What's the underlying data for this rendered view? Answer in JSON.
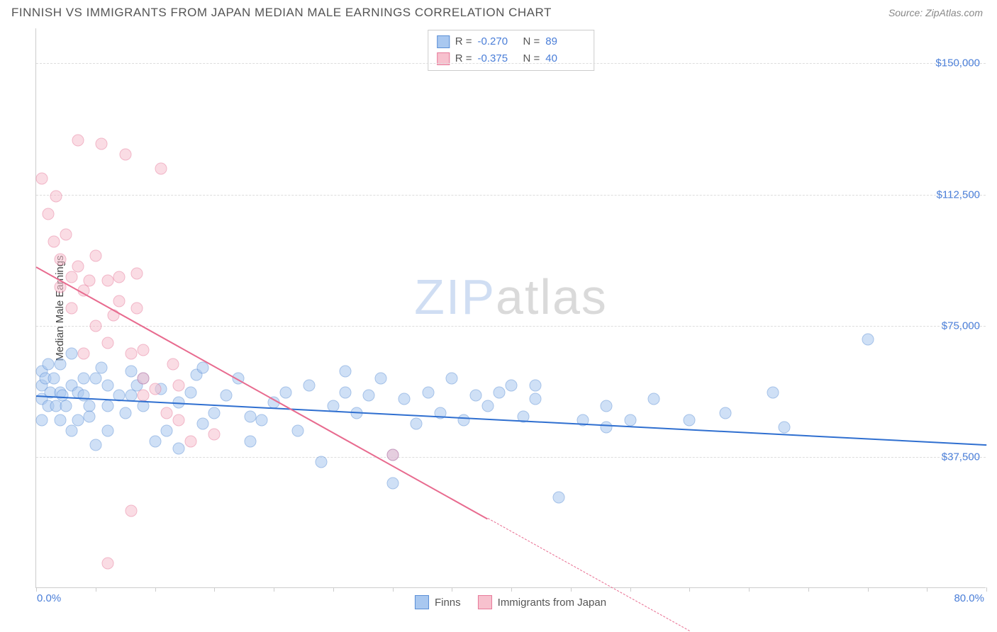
{
  "title": "FINNISH VS IMMIGRANTS FROM JAPAN MEDIAN MALE EARNINGS CORRELATION CHART",
  "source_label": "Source: ZipAtlas.com",
  "ylabel": "Median Male Earnings",
  "watermark": {
    "part1": "ZIP",
    "part2": "atlas"
  },
  "chart": {
    "type": "scatter",
    "xlim": [
      0,
      80
    ],
    "ylim": [
      0,
      160000
    ],
    "xticks_minor": [
      0,
      5,
      10,
      15,
      20,
      25,
      30,
      35,
      40,
      45,
      50,
      55,
      60,
      65,
      70,
      75,
      80
    ],
    "xtick_labels": {
      "min": "0.0%",
      "max": "80.0%"
    },
    "yticks": [
      37500,
      75000,
      112500,
      150000
    ],
    "ytick_labels": [
      "$37,500",
      "$75,000",
      "$112,500",
      "$150,000"
    ],
    "background_color": "#ffffff",
    "grid_color": "#dddddd",
    "axis_color": "#cccccc",
    "tick_label_color": "#4a7ed8",
    "series": [
      {
        "name": "Finns",
        "color_fill": "#a9c8f0",
        "color_stroke": "#5b8fd6",
        "R": "-0.270",
        "N": "89",
        "regression": {
          "x1": 0,
          "y1": 55000,
          "x2": 80,
          "y2": 41000,
          "color": "#2f6fd0",
          "extrapolate_from": 80
        },
        "points": [
          [
            0.5,
            62000
          ],
          [
            0.5,
            54000
          ],
          [
            0.5,
            48000
          ],
          [
            0.5,
            58000
          ],
          [
            0.8,
            60000
          ],
          [
            1,
            52000
          ],
          [
            1,
            64000
          ],
          [
            1.2,
            56000
          ],
          [
            1.5,
            60000
          ],
          [
            1.7,
            52000
          ],
          [
            2,
            56000
          ],
          [
            2,
            64000
          ],
          [
            2,
            48000
          ],
          [
            2.2,
            55000
          ],
          [
            2.5,
            52000
          ],
          [
            3,
            58000
          ],
          [
            3,
            45000
          ],
          [
            3,
            67000
          ],
          [
            3.5,
            56000
          ],
          [
            3.5,
            48000
          ],
          [
            4,
            60000
          ],
          [
            4,
            55000
          ],
          [
            4.5,
            52000
          ],
          [
            4.5,
            49000
          ],
          [
            5,
            60000
          ],
          [
            5,
            41000
          ],
          [
            5.5,
            63000
          ],
          [
            6,
            45000
          ],
          [
            6,
            52000
          ],
          [
            6,
            58000
          ],
          [
            7,
            55000
          ],
          [
            7.5,
            50000
          ],
          [
            8,
            55000
          ],
          [
            8,
            62000
          ],
          [
            8.5,
            58000
          ],
          [
            9,
            52000
          ],
          [
            9,
            60000
          ],
          [
            10,
            42000
          ],
          [
            10.5,
            57000
          ],
          [
            11,
            45000
          ],
          [
            12,
            53000
          ],
          [
            12,
            40000
          ],
          [
            13,
            56000
          ],
          [
            13.5,
            61000
          ],
          [
            14,
            47000
          ],
          [
            15,
            50000
          ],
          [
            16,
            55000
          ],
          [
            17,
            60000
          ],
          [
            18,
            49000
          ],
          [
            18,
            42000
          ],
          [
            19,
            48000
          ],
          [
            20,
            53000
          ],
          [
            21,
            56000
          ],
          [
            22,
            45000
          ],
          [
            23,
            58000
          ],
          [
            24,
            36000
          ],
          [
            25,
            52000
          ],
          [
            26,
            62000
          ],
          [
            26,
            56000
          ],
          [
            27,
            50000
          ],
          [
            28,
            55000
          ],
          [
            29,
            60000
          ],
          [
            30,
            30000
          ],
          [
            30,
            38000
          ],
          [
            31,
            54000
          ],
          [
            32,
            47000
          ],
          [
            33,
            56000
          ],
          [
            34,
            50000
          ],
          [
            35,
            60000
          ],
          [
            36,
            48000
          ],
          [
            37,
            55000
          ],
          [
            38,
            52000
          ],
          [
            39,
            56000
          ],
          [
            40,
            58000
          ],
          [
            41,
            49000
          ],
          [
            42,
            54000
          ],
          [
            42,
            58000
          ],
          [
            44,
            26000
          ],
          [
            46,
            48000
          ],
          [
            48,
            52000
          ],
          [
            48,
            46000
          ],
          [
            50,
            48000
          ],
          [
            52,
            54000
          ],
          [
            55,
            48000
          ],
          [
            58,
            50000
          ],
          [
            62,
            56000
          ],
          [
            63,
            46000
          ],
          [
            70,
            71000
          ],
          [
            14,
            63000
          ]
        ]
      },
      {
        "name": "Immigrants from Japan",
        "color_fill": "#f7c1ce",
        "color_stroke": "#e77a9a",
        "R": "-0.375",
        "N": "40",
        "regression": {
          "x1": 0,
          "y1": 92000,
          "x2": 38,
          "y2": 20000,
          "color": "#e86b8f",
          "extrapolate_from": 38,
          "extrapolate_to_x": 55
        },
        "points": [
          [
            0.5,
            117000
          ],
          [
            1,
            107000
          ],
          [
            1.5,
            99000
          ],
          [
            1.7,
            112000
          ],
          [
            2,
            94000
          ],
          [
            2,
            86000
          ],
          [
            2.5,
            101000
          ],
          [
            3,
            89000
          ],
          [
            3,
            80000
          ],
          [
            3.5,
            92000
          ],
          [
            4,
            67000
          ],
          [
            4,
            85000
          ],
          [
            4.5,
            88000
          ],
          [
            5,
            75000
          ],
          [
            5,
            95000
          ],
          [
            5.5,
            127000
          ],
          [
            6,
            70000
          ],
          [
            6,
            88000
          ],
          [
            6.5,
            78000
          ],
          [
            7,
            82000
          ],
          [
            7,
            89000
          ],
          [
            7.5,
            124000
          ],
          [
            8,
            67000
          ],
          [
            8.5,
            80000
          ],
          [
            8.5,
            90000
          ],
          [
            9,
            60000
          ],
          [
            9,
            68000
          ],
          [
            9,
            55000
          ],
          [
            10,
            57000
          ],
          [
            10.5,
            120000
          ],
          [
            11,
            50000
          ],
          [
            11.5,
            64000
          ],
          [
            12,
            48000
          ],
          [
            15,
            44000
          ],
          [
            8,
            22000
          ],
          [
            6,
            7000
          ],
          [
            12,
            58000
          ],
          [
            13,
            42000
          ],
          [
            30,
            38000
          ],
          [
            3.5,
            128000
          ]
        ]
      }
    ]
  },
  "stats_box": {
    "rows": [
      {
        "swatch_fill": "#a9c8f0",
        "swatch_stroke": "#5b8fd6",
        "r_label": "R =",
        "r_val": "-0.270",
        "n_label": "N =",
        "n_val": "89"
      },
      {
        "swatch_fill": "#f7c1ce",
        "swatch_stroke": "#e77a9a",
        "r_label": "R =",
        "r_val": "-0.375",
        "n_label": "N =",
        "n_val": "40"
      }
    ]
  },
  "legend": {
    "items": [
      {
        "swatch_fill": "#a9c8f0",
        "swatch_stroke": "#5b8fd6",
        "label": "Finns"
      },
      {
        "swatch_fill": "#f7c1ce",
        "swatch_stroke": "#e77a9a",
        "label": "Immigrants from Japan"
      }
    ]
  }
}
